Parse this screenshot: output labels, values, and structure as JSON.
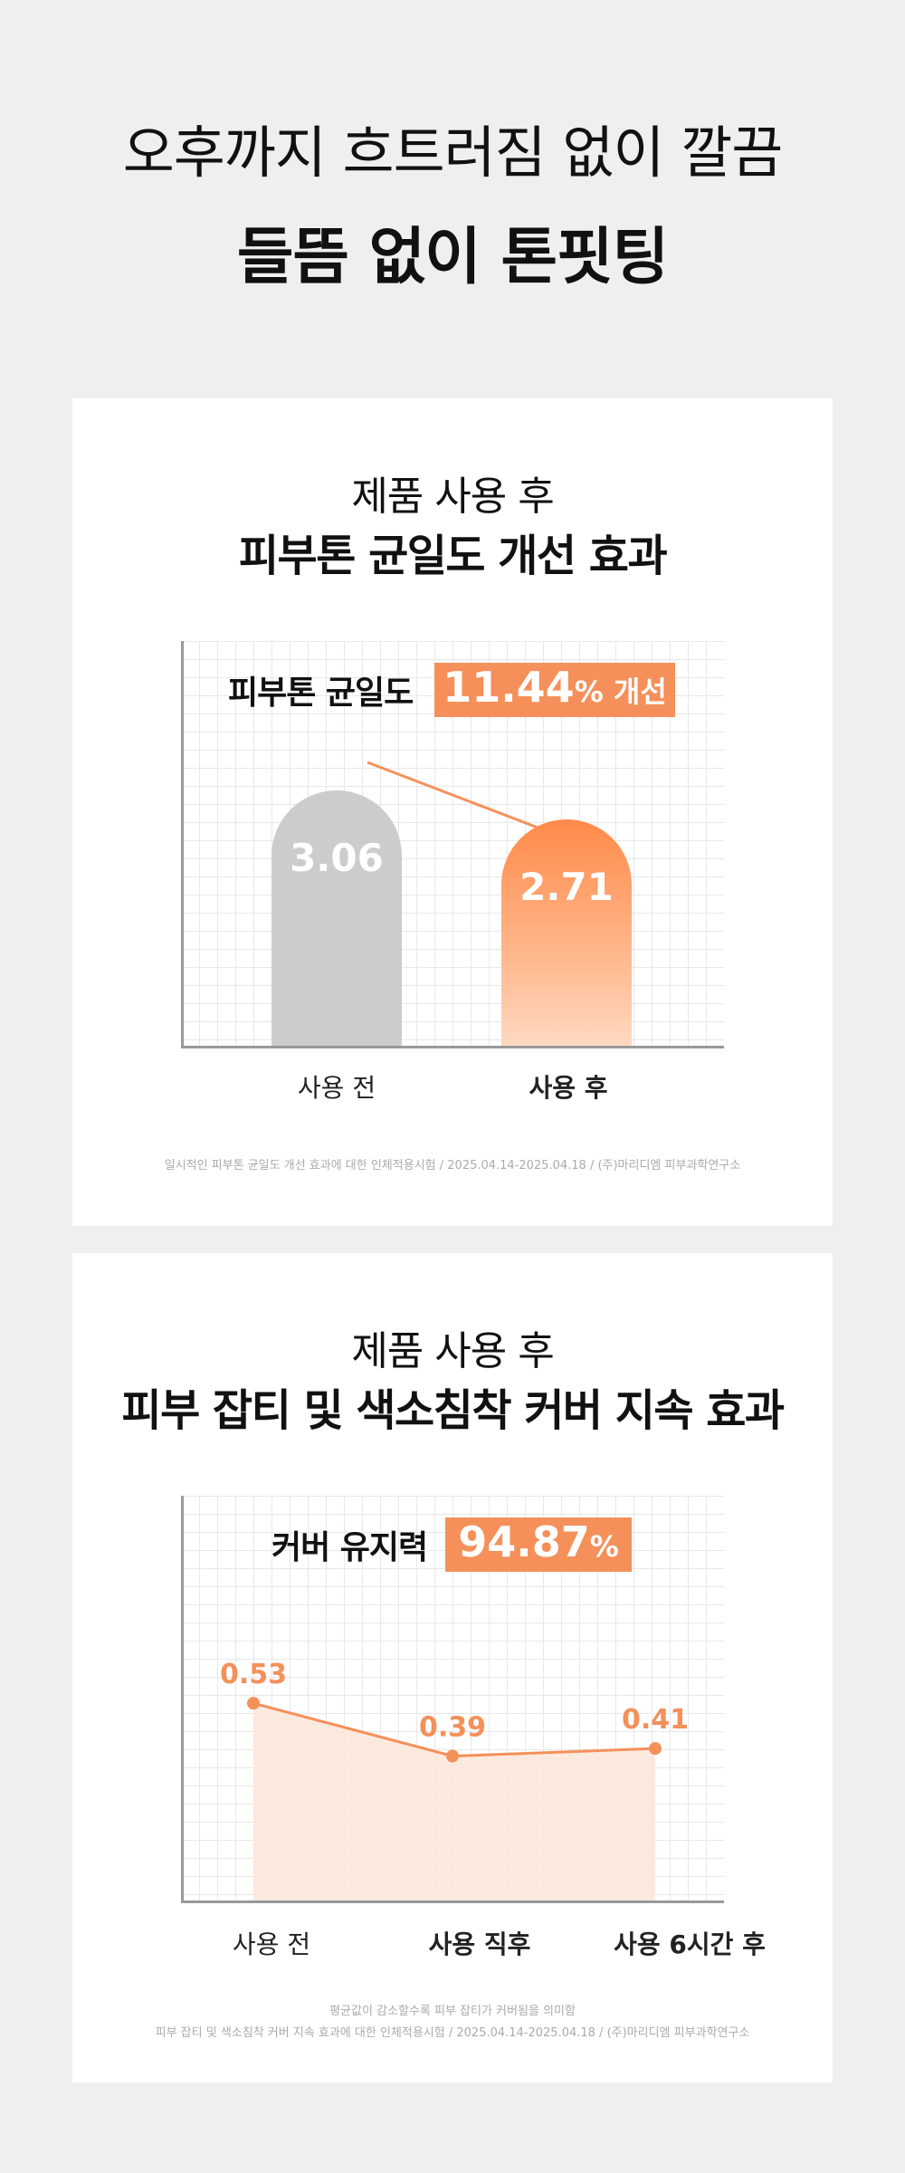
{
  "headline": {
    "line1": "오후까지 흐트러짐 없이 깔끔",
    "line2": "들뜸 없이 톤핏팅"
  },
  "colors": {
    "accent": "#f5905a",
    "bar_before": "#cccccc",
    "background": "#efefef"
  },
  "card1": {
    "subtitle": "제품 사용 후",
    "title": "피부톤 균일도 개선 효과",
    "metric_label": "피부톤 균일도",
    "metric_value": "11.44",
    "metric_unit": "%",
    "metric_suffix": " 개선",
    "footnote": "일시적인 피부톤 균일도 개선 효과에 대한 인체적용시험 / 2025.04.14-2025.04.18 / (주)마리디엠 피부과학연구소"
  },
  "card2": {
    "subtitle": "제품 사용 후",
    "title": "피부 잡티 및 색소침착 커버 지속 효과",
    "metric_label": "커버 유지력",
    "metric_value": "94.87",
    "metric_unit": "%",
    "footnote_line1": "평균값이 감소할수록 피부 잡티가 커버됨을 의미함",
    "footnote_line2": "피부 잡티 및 색소침착 커버 지속 효과에 대한 인체적용시험 / 2025.04.14-2025.04.18 / (주)마리디엠 피부과학연구소"
  },
  "chart_data": [
    {
      "type": "bar",
      "categories": [
        "사용 전",
        "사용 후"
      ],
      "values": [
        3.06,
        2.71
      ],
      "data_labels": [
        "3.06",
        "2.71"
      ],
      "title": "피부톤 균일도",
      "ylim": [
        0,
        3.4
      ],
      "grid": true,
      "trend_arrow": "decreasing"
    },
    {
      "type": "area",
      "categories": [
        "사용 전",
        "사용 직후",
        "사용 6시간 후"
      ],
      "values": [
        0.53,
        0.39,
        0.41
      ],
      "data_labels": [
        "0.53",
        "0.39",
        "0.41"
      ],
      "title": "커버 유지력",
      "ylim": [
        0,
        0.8
      ],
      "grid": true
    }
  ]
}
